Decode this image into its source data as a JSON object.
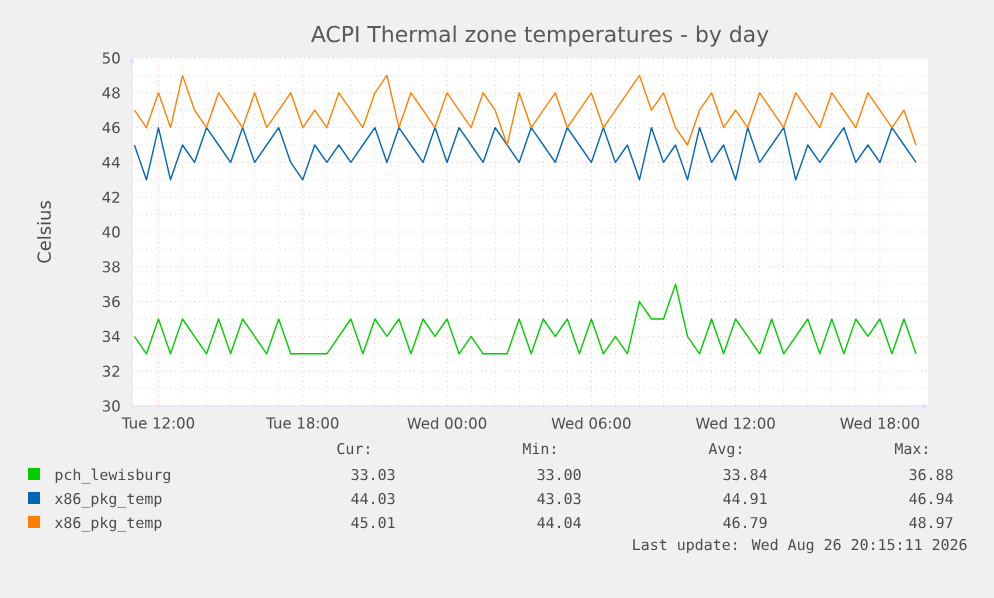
{
  "chart_data": {
    "type": "line",
    "title": "ACPI Thermal zone temperatures - by day",
    "ylabel": "Celsius",
    "x": [
      "2026-08-25T11:00",
      "2026-08-25T11:30",
      "2026-08-25T12:00",
      "2026-08-25T12:30",
      "2026-08-25T13:00",
      "2026-08-25T13:30",
      "2026-08-25T14:00",
      "2026-08-25T14:30",
      "2026-08-25T15:00",
      "2026-08-25T15:30",
      "2026-08-25T16:00",
      "2026-08-25T16:30",
      "2026-08-25T17:00",
      "2026-08-25T17:30",
      "2026-08-25T18:00",
      "2026-08-25T18:30",
      "2026-08-25T19:00",
      "2026-08-25T19:30",
      "2026-08-25T20:00",
      "2026-08-25T20:30",
      "2026-08-25T21:00",
      "2026-08-25T21:30",
      "2026-08-25T22:00",
      "2026-08-25T22:30",
      "2026-08-25T23:00",
      "2026-08-25T23:30",
      "2026-08-26T00:00",
      "2026-08-26T00:30",
      "2026-08-26T01:00",
      "2026-08-26T01:30",
      "2026-08-26T02:00",
      "2026-08-26T02:30",
      "2026-08-26T03:00",
      "2026-08-26T03:30",
      "2026-08-26T04:00",
      "2026-08-26T04:30",
      "2026-08-26T05:00",
      "2026-08-26T05:30",
      "2026-08-26T06:00",
      "2026-08-26T06:30",
      "2026-08-26T07:00",
      "2026-08-26T07:30",
      "2026-08-26T08:00",
      "2026-08-26T08:30",
      "2026-08-26T09:00",
      "2026-08-26T09:30",
      "2026-08-26T10:00",
      "2026-08-26T10:30",
      "2026-08-26T11:00",
      "2026-08-26T11:30",
      "2026-08-26T12:00",
      "2026-08-26T12:30",
      "2026-08-26T13:00",
      "2026-08-26T13:30",
      "2026-08-26T14:00",
      "2026-08-26T14:30",
      "2026-08-26T15:00",
      "2026-08-26T15:30",
      "2026-08-26T16:00",
      "2026-08-26T16:30",
      "2026-08-26T17:00",
      "2026-08-26T17:30",
      "2026-08-26T18:00",
      "2026-08-26T18:30",
      "2026-08-26T19:00",
      "2026-08-26T19:30"
    ],
    "series": [
      {
        "name": "pch_lewisburg",
        "color": "#00cc00",
        "values": [
          34,
          33,
          35,
          33,
          35,
          34,
          33,
          35,
          33,
          35,
          34,
          33,
          35,
          33,
          33,
          33,
          33,
          34,
          35,
          33,
          35,
          34,
          35,
          33,
          35,
          34,
          35,
          33,
          34,
          33,
          33,
          33,
          35,
          33,
          35,
          34,
          35,
          33,
          35,
          33,
          34,
          33,
          36,
          35,
          35,
          37,
          34,
          33,
          35,
          33,
          35,
          34,
          33,
          35,
          33,
          34,
          35,
          33,
          35,
          33,
          35,
          34,
          35,
          33,
          35,
          33
        ]
      },
      {
        "name": "x86_pkg_temp",
        "color": "#0066b3",
        "values": [
          45,
          43,
          46,
          43,
          45,
          44,
          46,
          45,
          44,
          46,
          44,
          45,
          46,
          44,
          43,
          45,
          44,
          45,
          44,
          45,
          46,
          44,
          46,
          45,
          44,
          46,
          44,
          46,
          45,
          44,
          46,
          45,
          44,
          46,
          45,
          44,
          46,
          45,
          44,
          46,
          44,
          45,
          43,
          46,
          44,
          45,
          43,
          46,
          44,
          45,
          43,
          46,
          44,
          45,
          46,
          43,
          45,
          44,
          45,
          46,
          44,
          45,
          44,
          46,
          45,
          44
        ]
      },
      {
        "name": "x86_pkg_temp",
        "color": "#ff8000",
        "values": [
          47,
          46,
          48,
          46,
          49,
          47,
          46,
          48,
          47,
          46,
          48,
          46,
          47,
          48,
          46,
          47,
          46,
          48,
          47,
          46,
          48,
          49,
          46,
          48,
          47,
          46,
          48,
          47,
          46,
          48,
          47,
          45,
          48,
          46,
          47,
          48,
          46,
          47,
          48,
          46,
          47,
          48,
          49,
          47,
          48,
          46,
          45,
          47,
          48,
          46,
          47,
          46,
          48,
          47,
          46,
          48,
          47,
          46,
          48,
          47,
          46,
          48,
          47,
          46,
          47,
          45
        ]
      }
    ],
    "xlim": [
      "2026-08-25T10:54",
      "2026-08-26T20:00"
    ],
    "xticks": [
      {
        "value": "2026-08-25T12:00",
        "label": "Tue 12:00"
      },
      {
        "value": "2026-08-25T18:00",
        "label": "Tue 18:00"
      },
      {
        "value": "2026-08-26T00:00",
        "label": "Wed 00:00"
      },
      {
        "value": "2026-08-26T06:00",
        "label": "Wed 06:00"
      },
      {
        "value": "2026-08-26T12:00",
        "label": "Wed 12:00"
      },
      {
        "value": "2026-08-26T18:00",
        "label": "Wed 18:00"
      }
    ],
    "ylim": [
      30,
      50
    ],
    "yticks": [
      30,
      32,
      34,
      36,
      38,
      40,
      42,
      44,
      46,
      48,
      50
    ],
    "grid": true,
    "legend": "bottom",
    "marker": "none",
    "line_style": "solid",
    "annotations": [
      "Cur:",
      "Min:",
      "Avg:",
      "Max:",
      "33.03",
      "33.00",
      "33.84",
      "36.88",
      "44.03",
      "43.03",
      "44.91",
      "46.94",
      "45.01",
      "44.04",
      "46.79",
      "48.97",
      "Last update: Wed Aug 26 20:15:11 2026"
    ]
  }
}
